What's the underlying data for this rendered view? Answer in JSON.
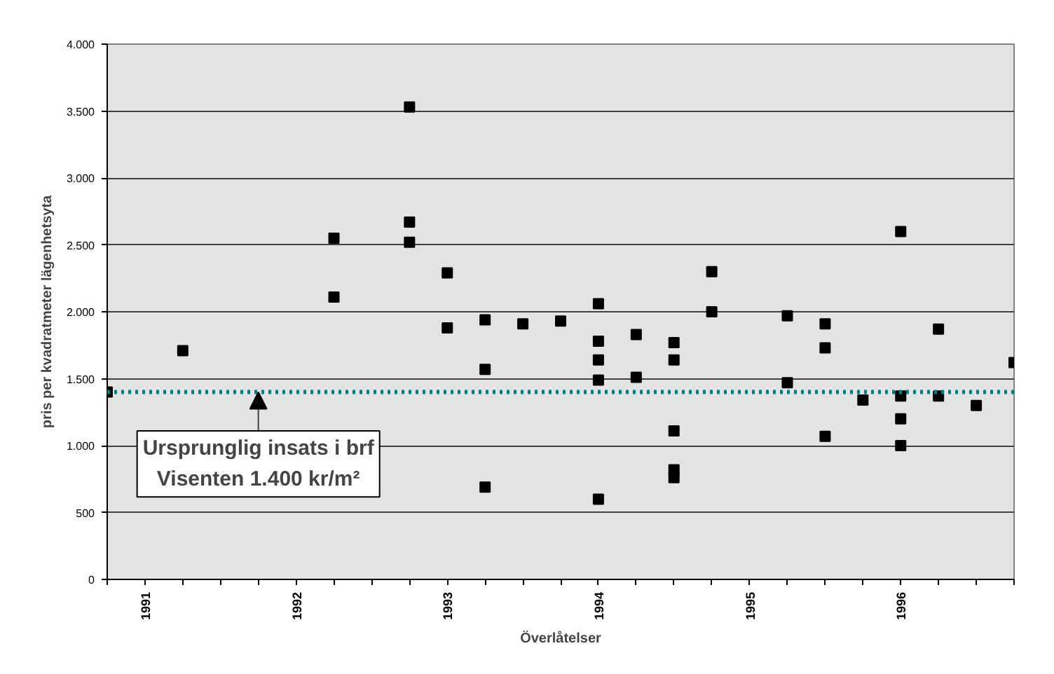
{
  "chart_data": {
    "type": "scatter",
    "xlabel": "Överlåtelser",
    "ylabel": "pris per kvadratmeter lägenhetsyta",
    "x": [
      1990.75,
      1991.25,
      1992.25,
      1992.25,
      1992.75,
      1992.75,
      1992.75,
      1993.0,
      1993.0,
      1993.25,
      1993.25,
      1993.25,
      1993.5,
      1993.75,
      1994.0,
      1994.0,
      1994.0,
      1994.0,
      1994.0,
      1994.25,
      1994.25,
      1994.5,
      1994.5,
      1994.5,
      1994.5,
      1994.5,
      1994.75,
      1994.75,
      1995.25,
      1995.25,
      1995.5,
      1995.5,
      1995.5,
      1995.75,
      1996.0,
      1996.0,
      1996.0,
      1996.0,
      1996.25,
      1996.25,
      1996.5,
      1996.75
    ],
    "series": [
      {
        "color": "#000000",
        "values": [
          1400,
          1710,
          2550,
          2110,
          3530,
          2670,
          2520,
          2290,
          1880,
          1940,
          1570,
          690,
          1910,
          1930,
          2060,
          1780,
          1640,
          1490,
          600,
          1830,
          1510,
          1770,
          1640,
          1110,
          820,
          760,
          2300,
          2000,
          1970,
          1470,
          1910,
          1730,
          1070,
          1340,
          2600,
          1370,
          1200,
          1000,
          1870,
          1370,
          1300,
          1620
        ]
      }
    ],
    "marker": "square",
    "xlim": [
      1990.75,
      1996.75
    ],
    "xticks": [
      {
        "value": 1990.75,
        "label": null
      },
      {
        "value": 1991,
        "label": "1991"
      },
      {
        "value": 1991.25,
        "label": null
      },
      {
        "value": 1991.5,
        "label": null
      },
      {
        "value": 1991.75,
        "label": null
      },
      {
        "value": 1992,
        "label": "1992"
      },
      {
        "value": 1992.25,
        "label": null
      },
      {
        "value": 1992.5,
        "label": null
      },
      {
        "value": 1992.75,
        "label": null
      },
      {
        "value": 1993,
        "label": "1993"
      },
      {
        "value": 1993.25,
        "label": null
      },
      {
        "value": 1993.5,
        "label": null
      },
      {
        "value": 1993.75,
        "label": null
      },
      {
        "value": 1994,
        "label": "1994"
      },
      {
        "value": 1994.25,
        "label": null
      },
      {
        "value": 1994.5,
        "label": null
      },
      {
        "value": 1994.75,
        "label": null
      },
      {
        "value": 1995,
        "label": "1995"
      },
      {
        "value": 1995.25,
        "label": null
      },
      {
        "value": 1995.5,
        "label": null
      },
      {
        "value": 1995.75,
        "label": null
      },
      {
        "value": 1996,
        "label": "1996"
      },
      {
        "value": 1996.25,
        "label": null
      },
      {
        "value": 1996.5,
        "label": null
      },
      {
        "value": 1996.75,
        "label": null
      }
    ],
    "ylim": [
      0,
      4000
    ],
    "yticks": [
      0,
      500,
      {
        "value": 1000,
        "label": "1.000"
      },
      {
        "value": 1500,
        "label": "1.500"
      },
      {
        "value": 2000,
        "label": "2.000"
      },
      {
        "value": 2500,
        "label": "2.500"
      },
      {
        "value": 3000,
        "label": "3.000"
      },
      {
        "value": 3500,
        "label": "3.500"
      },
      {
        "value": 4000,
        "label": "4.000"
      }
    ],
    "grid": "y",
    "ref_lines": [
      {
        "axis": "y",
        "value": 1400,
        "label": "Ursprunglig insats i brf\nVisenten 1.400 kr/m²",
        "color": "#008080",
        "line_style": "dotted"
      }
    ]
  }
}
